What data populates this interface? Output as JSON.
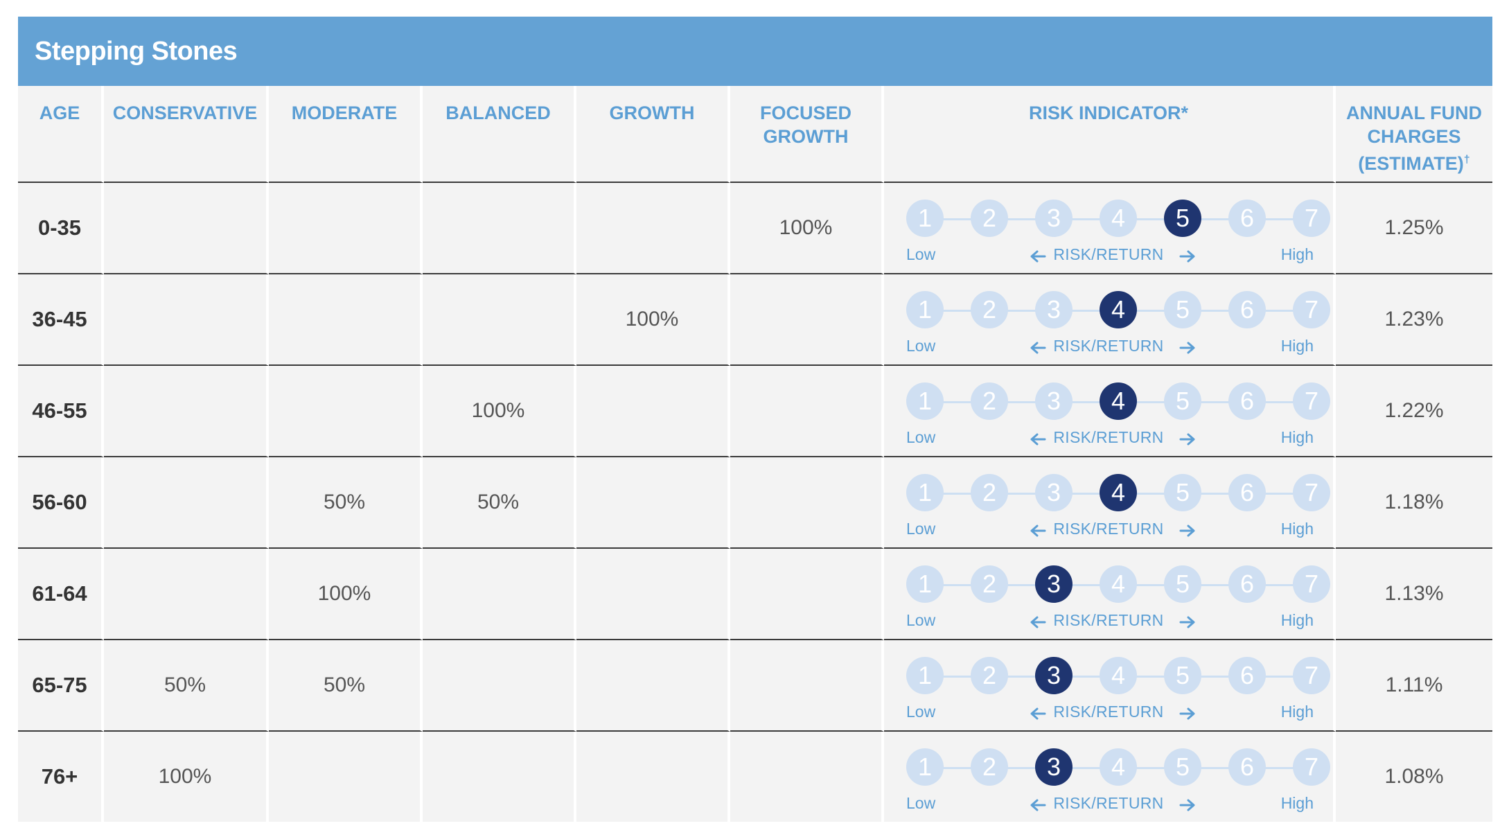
{
  "title": "Stepping Stones",
  "headers": {
    "age": "AGE",
    "conservative": "CONSERVATIVE",
    "moderate": "MODERATE",
    "balanced": "BALANCED",
    "growth": "GROWTH",
    "focused_growth_1": "FOCUSED",
    "focused_growth_2": "GROWTH",
    "risk_indicator": "RISK INDICATOR*",
    "charges_1": "ANNUAL FUND",
    "charges_2": "CHARGES",
    "charges_3": "(ESTIMATE)",
    "charges_dagger": "†"
  },
  "scale": {
    "numbers": [
      "1",
      "2",
      "3",
      "4",
      "5",
      "6",
      "7"
    ],
    "low": "Low",
    "high": "High",
    "mid": "RISK/RETURN",
    "colors": {
      "active": "#1f3570",
      "inactive": "#cfdff2",
      "accent": "#5b9ed4",
      "title_bar": "#64a2d4"
    }
  },
  "rows": [
    {
      "age": "0-35",
      "conservative": "",
      "moderate": "",
      "balanced": "",
      "growth": "",
      "focused_growth": "100%",
      "risk_level": 5,
      "charge": "1.25%"
    },
    {
      "age": "36-45",
      "conservative": "",
      "moderate": "",
      "balanced": "",
      "growth": "100%",
      "focused_growth": "",
      "risk_level": 4,
      "charge": "1.23%"
    },
    {
      "age": "46-55",
      "conservative": "",
      "moderate": "",
      "balanced": "100%",
      "growth": "",
      "focused_growth": "",
      "risk_level": 4,
      "charge": "1.22%"
    },
    {
      "age": "56-60",
      "conservative": "",
      "moderate": "50%",
      "balanced": "50%",
      "growth": "",
      "focused_growth": "",
      "risk_level": 4,
      "charge": "1.18%"
    },
    {
      "age": "61-64",
      "conservative": "",
      "moderate": "100%",
      "balanced": "",
      "growth": "",
      "focused_growth": "",
      "risk_level": 3,
      "charge": "1.13%"
    },
    {
      "age": "65-75",
      "conservative": "50%",
      "moderate": "50%",
      "balanced": "",
      "growth": "",
      "focused_growth": "",
      "risk_level": 3,
      "charge": "1.11%"
    },
    {
      "age": "76+",
      "conservative": "100%",
      "moderate": "",
      "balanced": "",
      "growth": "",
      "focused_growth": "",
      "risk_level": 3,
      "charge": "1.08%"
    }
  ]
}
